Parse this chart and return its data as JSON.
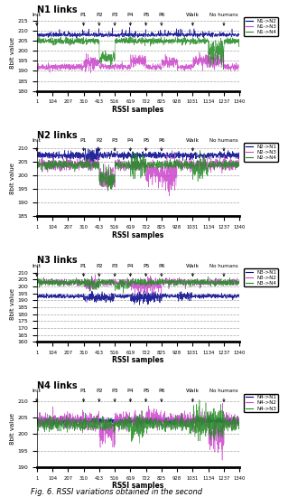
{
  "subplots": [
    {
      "title": "N1 links",
      "lines": [
        {
          "label": "N1->N2",
          "color": "#00008B"
        },
        {
          "label": "N1->N3",
          "color": "#CC44CC"
        },
        {
          "label": "N1->N4",
          "color": "#228B22"
        }
      ],
      "ylim": [
        180,
        218
      ],
      "yticks": [
        180,
        185,
        190,
        195,
        200,
        205,
        210,
        215
      ],
      "ylabel": "8bit value",
      "xlabel": "RSSI samples"
    },
    {
      "title": "N2 links",
      "lines": [
        {
          "label": "N2->N1",
          "color": "#00008B"
        },
        {
          "label": "N2->N3",
          "color": "#CC44CC"
        },
        {
          "label": "N2->N4",
          "color": "#228B22"
        }
      ],
      "ylim": [
        185,
        213
      ],
      "yticks": [
        185,
        190,
        195,
        200,
        205,
        210
      ],
      "ylabel": "8bit value",
      "xlabel": "RSSI samples"
    },
    {
      "title": "N3 links",
      "lines": [
        {
          "label": "N3->N1",
          "color": "#00008B"
        },
        {
          "label": "N3->N2",
          "color": "#CC44CC"
        },
        {
          "label": "N3->N4",
          "color": "#228B22"
        }
      ],
      "ylim": [
        160,
        215
      ],
      "yticks": [
        160,
        165,
        170,
        175,
        180,
        185,
        190,
        195,
        200,
        205,
        210
      ],
      "ylabel": "8bit value",
      "xlabel": "RSSI samples"
    },
    {
      "title": "N4 links",
      "lines": [
        {
          "label": "N4->N1",
          "color": "#00008B"
        },
        {
          "label": "N4->N2",
          "color": "#CC44CC"
        },
        {
          "label": "N4->N3",
          "color": "#228B22"
        }
      ],
      "ylim": [
        190,
        213
      ],
      "yticks": [
        190,
        195,
        200,
        205,
        210
      ],
      "ylabel": "8bit value",
      "xlabel": "RSSI samples"
    }
  ],
  "x_ticks": [
    1,
    104,
    207,
    310,
    413,
    516,
    619,
    722,
    825,
    928,
    1031,
    1134,
    1237,
    1340
  ],
  "annotations": [
    {
      "label": "Init",
      "x": 1
    },
    {
      "label": "P1",
      "x": 310
    },
    {
      "label": "P2",
      "x": 413
    },
    {
      "label": "P3",
      "x": 516
    },
    {
      "label": "P4",
      "x": 619
    },
    {
      "label": "P5",
      "x": 722
    },
    {
      "label": "P6",
      "x": 825
    },
    {
      "label": "Walk",
      "x": 1031
    },
    {
      "label": "No humans",
      "x": 1237
    }
  ],
  "n_samples": 1340,
  "caption": "Fig. 6. RSSI variations obtained in the second"
}
